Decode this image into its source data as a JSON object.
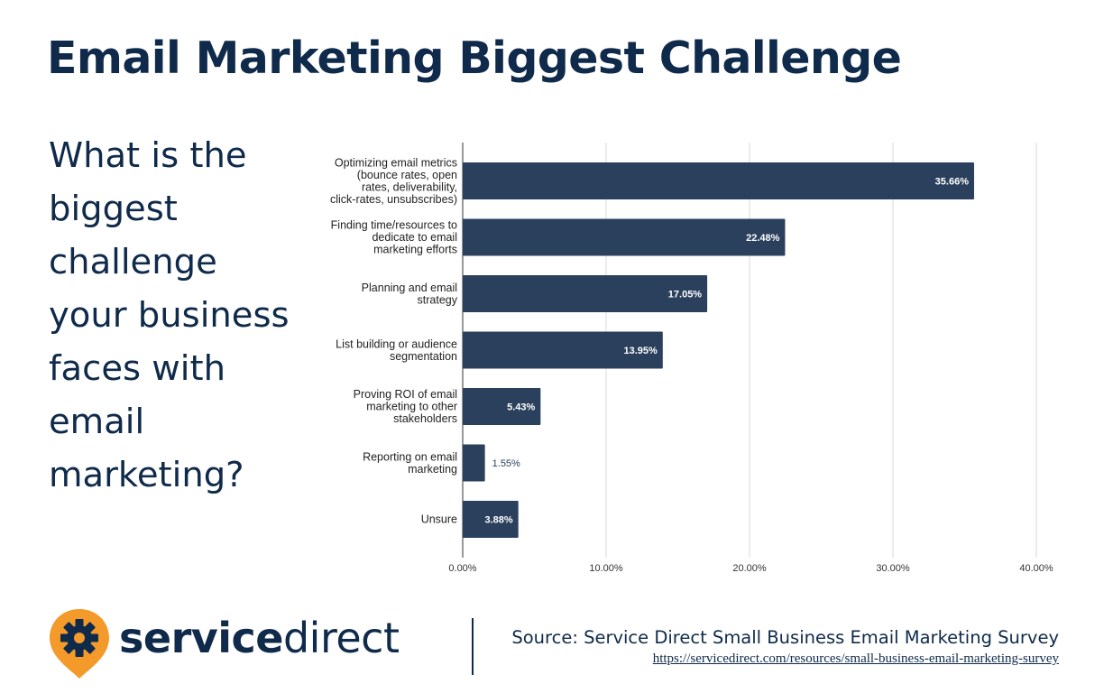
{
  "header": {
    "title": "Email Marketing Biggest Challenge"
  },
  "question": "What is the biggest challenge your business faces with email marketing?",
  "chart_data": {
    "type": "bar",
    "orientation": "horizontal",
    "categories": [
      [
        "Optimizing email metrics",
        "(bounce rates, open",
        "rates, deliverability,",
        "click-rates, unsubscribes)"
      ],
      [
        "Finding time/resources to",
        "dedicate to email",
        "marketing efforts"
      ],
      [
        "Planning and email",
        "strategy"
      ],
      [
        "List building or audience",
        "segmentation"
      ],
      [
        "Proving ROI of email",
        "marketing to other",
        "stakeholders"
      ],
      [
        "Reporting on email",
        "marketing"
      ],
      [
        "Unsure"
      ]
    ],
    "values": [
      35.66,
      22.48,
      17.05,
      13.95,
      5.43,
      1.55,
      3.88
    ],
    "data_labels": [
      "35.66%",
      "22.48%",
      "17.05%",
      "13.95%",
      "5.43%",
      "1.55%",
      "3.88%"
    ],
    "xlim": [
      0,
      40
    ],
    "x_ticks": [
      0,
      10,
      20,
      30,
      40
    ],
    "x_tick_labels": [
      "0.00%",
      "10.00%",
      "20.00%",
      "30.00%",
      "40.00%"
    ],
    "grid": true,
    "bar_color": "#2b405d",
    "title": "",
    "xlabel": "",
    "ylabel": ""
  },
  "footer": {
    "logo": {
      "text_bold": "service",
      "text_light": "direct",
      "icon": "gear-pin-icon"
    },
    "source_text": "Source: Service Direct Small Business Email Marketing Survey",
    "source_url": "https://servicedirect.com/resources/small-business-email-marketing-survey"
  },
  "colors": {
    "navy": "#0f2a4a",
    "bar": "#2b405d",
    "orange": "#f39a2b"
  }
}
